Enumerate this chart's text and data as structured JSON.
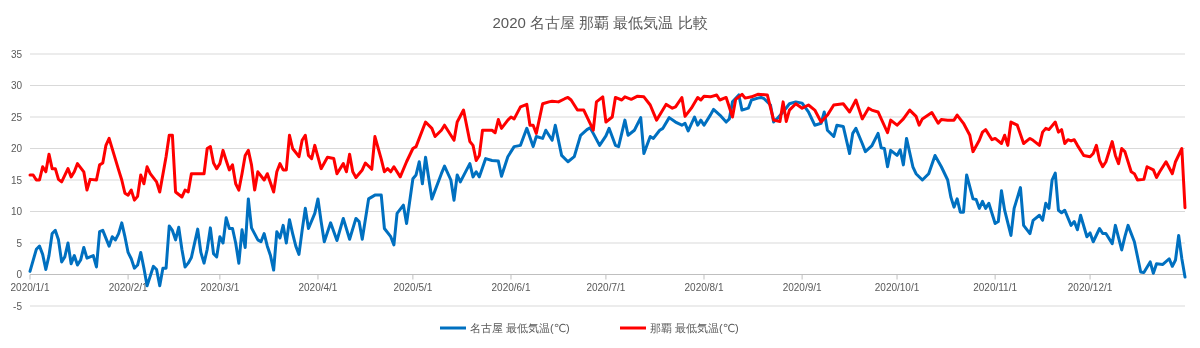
{
  "chart_data": {
    "type": "line",
    "title": "2020 名古屋 那覇 最低気温 比較",
    "xlim": [
      "2020-01-01",
      "2020-12-31"
    ],
    "xticks": [
      {
        "value": "2020-01-01",
        "label": "2020/1/1"
      },
      {
        "value": "2020-02-01",
        "label": "2020/2/1"
      },
      {
        "value": "2020-03-01",
        "label": "2020/3/1"
      },
      {
        "value": "2020-04-01",
        "label": "2020/4/1"
      },
      {
        "value": "2020-05-01",
        "label": "2020/5/1"
      },
      {
        "value": "2020-06-01",
        "label": "2020/6/1"
      },
      {
        "value": "2020-07-01",
        "label": "2020/7/1"
      },
      {
        "value": "2020-08-01",
        "label": "2020/8/1"
      },
      {
        "value": "2020-09-01",
        "label": "2020/9/1"
      },
      {
        "value": "2020-10-01",
        "label": "2020/10/1"
      },
      {
        "value": "2020-11-01",
        "label": "2020/11/1"
      },
      {
        "value": "2020-12-01",
        "label": "2020/12/1"
      }
    ],
    "ylim": [
      -5,
      35
    ],
    "yticks": [
      -5,
      0,
      5,
      10,
      15,
      20,
      25,
      30,
      35
    ],
    "grid": "y",
    "legend": "bottom",
    "marker": "none",
    "line_style": "solid",
    "series": [
      {
        "name": "名古屋 最低気温(℃)",
        "color": "#0070c0",
        "x": [
          "2020-01-01",
          "2020-01-03",
          "2020-01-04",
          "2020-01-05",
          "2020-01-06",
          "2020-01-07",
          "2020-01-08",
          "2020-01-09",
          "2020-01-10",
          "2020-01-11",
          "2020-01-12",
          "2020-01-13",
          "2020-01-14",
          "2020-01-15",
          "2020-01-16",
          "2020-01-17",
          "2020-01-18",
          "2020-01-19",
          "2020-01-21",
          "2020-01-22",
          "2020-01-23",
          "2020-01-24",
          "2020-01-26",
          "2020-01-27",
          "2020-01-28",
          "2020-01-29",
          "2020-01-30",
          "2020-01-31",
          "2020-02-01",
          "2020-02-02",
          "2020-02-03",
          "2020-02-04",
          "2020-02-05",
          "2020-02-06",
          "2020-02-07",
          "2020-02-09",
          "2020-02-10",
          "2020-02-11",
          "2020-02-12",
          "2020-02-13",
          "2020-02-14",
          "2020-02-15",
          "2020-02-16",
          "2020-02-17",
          "2020-02-18",
          "2020-02-19",
          "2020-02-20",
          "2020-02-21",
          "2020-02-23",
          "2020-02-24",
          "2020-02-25",
          "2020-02-26",
          "2020-02-27",
          "2020-02-28",
          "2020-02-29",
          "2020-03-01",
          "2020-03-02",
          "2020-03-03",
          "2020-03-04",
          "2020-03-05",
          "2020-03-06",
          "2020-03-07",
          "2020-03-08",
          "2020-03-09",
          "2020-03-10",
          "2020-03-11",
          "2020-03-13",
          "2020-03-14",
          "2020-03-15",
          "2020-03-16",
          "2020-03-17",
          "2020-03-18",
          "2020-03-19",
          "2020-03-20",
          "2020-03-21",
          "2020-03-22",
          "2020-03-23",
          "2020-03-24",
          "2020-03-25",
          "2020-03-26",
          "2020-03-27",
          "2020-03-28",
          "2020-03-29",
          "2020-03-31",
          "2020-04-01",
          "2020-04-02",
          "2020-04-03",
          "2020-04-05",
          "2020-04-07",
          "2020-04-09",
          "2020-04-11",
          "2020-04-13",
          "2020-04-14",
          "2020-04-15",
          "2020-04-17",
          "2020-04-19",
          "2020-04-21",
          "2020-04-22",
          "2020-04-24",
          "2020-04-25",
          "2020-04-26",
          "2020-04-28",
          "2020-04-29",
          "2020-05-01",
          "2020-05-02",
          "2020-05-03",
          "2020-05-04",
          "2020-05-05",
          "2020-05-07",
          "2020-05-10",
          "2020-05-11",
          "2020-05-13",
          "2020-05-14",
          "2020-05-15",
          "2020-05-16",
          "2020-05-19",
          "2020-05-20",
          "2020-05-21",
          "2020-05-22",
          "2020-05-24",
          "2020-05-26",
          "2020-05-28",
          "2020-05-29",
          "2020-05-31",
          "2020-06-02",
          "2020-06-04",
          "2020-06-06",
          "2020-06-08",
          "2020-06-09",
          "2020-06-11",
          "2020-06-12",
          "2020-06-14",
          "2020-06-15",
          "2020-06-17",
          "2020-06-19",
          "2020-06-21",
          "2020-06-23",
          "2020-06-25",
          "2020-06-26",
          "2020-06-27",
          "2020-06-29",
          "2020-07-01",
          "2020-07-02",
          "2020-07-04",
          "2020-07-05",
          "2020-07-07",
          "2020-07-08",
          "2020-07-10",
          "2020-07-12",
          "2020-07-13",
          "2020-07-15",
          "2020-07-16",
          "2020-07-18",
          "2020-07-19",
          "2020-07-21",
          "2020-07-23",
          "2020-07-25",
          "2020-07-26",
          "2020-07-27",
          "2020-07-29",
          "2020-07-30",
          "2020-07-31",
          "2020-08-01",
          "2020-08-03",
          "2020-08-04",
          "2020-08-06",
          "2020-08-08",
          "2020-08-09",
          "2020-08-10",
          "2020-08-12",
          "2020-08-13",
          "2020-08-15",
          "2020-08-16",
          "2020-08-18",
          "2020-08-19",
          "2020-08-20",
          "2020-08-22",
          "2020-08-23",
          "2020-08-24",
          "2020-08-26",
          "2020-08-28",
          "2020-08-30",
          "2020-09-01",
          "2020-09-03",
          "2020-09-05",
          "2020-09-07",
          "2020-09-08",
          "2020-09-09",
          "2020-09-11",
          "2020-09-12",
          "2020-09-14",
          "2020-09-16",
          "2020-09-17",
          "2020-09-18",
          "2020-09-20",
          "2020-09-21",
          "2020-09-23",
          "2020-09-25",
          "2020-09-26",
          "2020-09-27",
          "2020-09-28",
          "2020-09-29",
          "2020-10-01",
          "2020-10-02",
          "2020-10-03",
          "2020-10-04",
          "2020-10-06",
          "2020-10-07",
          "2020-10-09",
          "2020-10-11",
          "2020-10-13",
          "2020-10-15",
          "2020-10-17",
          "2020-10-18",
          "2020-10-19",
          "2020-10-20",
          "2020-10-21",
          "2020-10-22",
          "2020-10-23",
          "2020-10-25",
          "2020-10-26",
          "2020-10-27",
          "2020-10-28",
          "2020-10-29",
          "2020-10-30",
          "2020-11-01",
          "2020-11-02",
          "2020-11-03",
          "2020-11-04",
          "2020-11-06",
          "2020-11-07",
          "2020-11-09",
          "2020-11-10",
          "2020-11-12",
          "2020-11-13",
          "2020-11-15",
          "2020-11-16",
          "2020-11-17",
          "2020-11-18",
          "2020-11-19",
          "2020-11-20",
          "2020-11-21",
          "2020-11-22",
          "2020-11-23",
          "2020-11-25",
          "2020-11-26",
          "2020-11-27",
          "2020-11-28",
          "2020-11-30",
          "2020-12-01",
          "2020-12-02",
          "2020-12-04",
          "2020-12-05",
          "2020-12-06",
          "2020-12-08",
          "2020-12-09",
          "2020-12-11",
          "2020-12-12",
          "2020-12-13",
          "2020-12-15",
          "2020-12-17",
          "2020-12-18",
          "2020-12-20",
          "2020-12-21",
          "2020-12-22",
          "2020-12-24",
          "2020-12-26",
          "2020-12-27",
          "2020-12-28",
          "2020-12-29",
          "2020-12-30",
          "2020-12-31"
        ],
        "values": [
          0.5,
          4,
          4.5,
          3.2,
          0.8,
          3,
          6.5,
          7,
          5.5,
          2,
          2.8,
          5,
          1.7,
          3,
          1.5,
          2.3,
          4.3,
          2.6,
          3,
          1.2,
          6.8,
          7,
          4.5,
          6,
          5.5,
          6.5,
          8.2,
          6,
          3.5,
          2.5,
          1,
          1.5,
          3.5,
          1,
          -1.8,
          1.3,
          0.8,
          -1.8,
          1,
          1,
          7.7,
          7,
          5.5,
          7.5,
          4,
          1.2,
          1.8,
          2.7,
          7.2,
          3.5,
          1.8,
          4,
          7.4,
          3.3,
          2.8,
          6,
          5,
          9,
          7.3,
          7.3,
          5,
          1.8,
          7.1,
          4.3,
          12,
          7.4,
          5.5,
          5.2,
          6.5,
          4.5,
          3,
          0.7,
          6.8,
          5.8,
          7.8,
          5,
          8.7,
          6.5,
          4.5,
          3.2,
          7,
          10.5,
          7.3,
          9.7,
          12,
          8.4,
          5.2,
          8.2,
          5.4,
          8.9,
          5.6,
          8.9,
          8.4,
          5.6,
          12,
          12.6,
          12.6,
          7.3,
          6,
          4.7,
          9.7,
          11,
          8.1,
          15.2,
          15.8,
          17.9,
          14.4,
          18.6,
          12,
          16,
          17.2,
          15,
          11.8,
          15.8,
          14.7,
          17.6,
          15.5,
          16.3,
          15.5,
          18.4,
          18.1,
          18,
          15.6,
          18.7,
          20.3,
          20.5,
          23.2,
          20.3,
          21.9,
          21.6,
          22.9,
          21.3,
          23.7,
          18.9,
          17.9,
          18.7,
          22.1,
          23,
          23.3,
          22.4,
          20.5,
          22,
          23.2,
          20.5,
          20.3,
          24.5,
          22.1,
          22.9,
          24.9,
          19.2,
          21.9,
          21.6,
          22.9,
          23.2,
          24.9,
          24.2,
          23.7,
          24,
          22.8,
          25,
          23.7,
          24.5,
          23.7,
          25.3,
          26.2,
          25.3,
          24.2,
          24.7,
          27.4,
          28.5,
          26.1,
          26.4,
          27.7,
          28,
          28.1,
          27.9,
          26.9,
          24.2,
          24.7,
          25.8,
          27.1,
          27.4,
          27.2,
          25.8,
          23.7,
          24,
          25.8,
          22.9,
          21.9,
          23.7,
          23.5,
          19.2,
          22.4,
          23.2,
          20.8,
          19.5,
          20.4,
          22.4,
          20.1,
          20,
          17.1,
          19.7,
          18.9,
          19.8,
          17.4,
          21.6,
          17.1,
          16,
          15,
          16,
          18.9,
          17.1,
          15,
          12.3,
          10.7,
          12,
          9.9,
          9.9,
          15.8,
          12,
          11.9,
          10.5,
          11.6,
          10.5,
          11.3,
          8.1,
          8.4,
          13.3,
          10.2,
          6.2,
          10.5,
          13.8,
          7.8,
          6.5,
          8.6,
          9.4,
          8.6,
          11.3,
          10.5,
          15,
          16.1,
          10.2,
          9.8,
          10.2,
          7.8,
          8.4,
          7.1,
          9.4,
          6,
          6.6,
          5.2,
          7.3,
          6.5,
          6.5,
          4.9,
          7.8,
          3.9,
          6,
          7.8,
          5.2,
          0.4,
          0.3,
          2,
          0.2,
          1.7,
          1.6,
          2.5,
          1.3,
          2.3,
          6.2,
          2.5,
          -0.4
        ]
      },
      {
        "name": "那覇 最低気温(℃)",
        "color": "#ff0000",
        "x": [
          "2020-01-01",
          "2020-01-02",
          "2020-01-03",
          "2020-01-04",
          "2020-01-05",
          "2020-01-06",
          "2020-01-07",
          "2020-01-08",
          "2020-01-09",
          "2020-01-10",
          "2020-01-11",
          "2020-01-13",
          "2020-01-14",
          "2020-01-15",
          "2020-01-16",
          "2020-01-18",
          "2020-01-19",
          "2020-01-20",
          "2020-01-22",
          "2020-01-23",
          "2020-01-24",
          "2020-01-25",
          "2020-01-26",
          "2020-01-29",
          "2020-01-30",
          "2020-01-31",
          "2020-02-01",
          "2020-02-02",
          "2020-02-03",
          "2020-02-04",
          "2020-02-05",
          "2020-02-06",
          "2020-02-07",
          "2020-02-08",
          "2020-02-10",
          "2020-02-11",
          "2020-02-13",
          "2020-02-14",
          "2020-02-15",
          "2020-02-16",
          "2020-02-18",
          "2020-02-19",
          "2020-02-20",
          "2020-02-21",
          "2020-02-23",
          "2020-02-25",
          "2020-02-26",
          "2020-02-27",
          "2020-02-28",
          "2020-02-29",
          "2020-03-01",
          "2020-03-02",
          "2020-03-03",
          "2020-03-04",
          "2020-03-05",
          "2020-03-06",
          "2020-03-07",
          "2020-03-08",
          "2020-03-09",
          "2020-03-10",
          "2020-03-11",
          "2020-03-12",
          "2020-03-13",
          "2020-03-15",
          "2020-03-16",
          "2020-03-18",
          "2020-03-19",
          "2020-03-20",
          "2020-03-21",
          "2020-03-22",
          "2020-03-23",
          "2020-03-24",
          "2020-03-26",
          "2020-03-27",
          "2020-03-28",
          "2020-03-29",
          "2020-03-30",
          "2020-03-31",
          "2020-04-02",
          "2020-04-04",
          "2020-04-06",
          "2020-04-07",
          "2020-04-09",
          "2020-04-10",
          "2020-04-11",
          "2020-04-12",
          "2020-04-13",
          "2020-04-15",
          "2020-04-16",
          "2020-04-18",
          "2020-04-19",
          "2020-04-21",
          "2020-04-22",
          "2020-04-23",
          "2020-04-24",
          "2020-04-25",
          "2020-04-27",
          "2020-04-29",
          "2020-05-01",
          "2020-05-02",
          "2020-05-05",
          "2020-05-07",
          "2020-05-08",
          "2020-05-10",
          "2020-05-11",
          "2020-05-13",
          "2020-05-14",
          "2020-05-15",
          "2020-05-17",
          "2020-05-19",
          "2020-05-20",
          "2020-05-21",
          "2020-05-22",
          "2020-05-23",
          "2020-05-26",
          "2020-05-27",
          "2020-05-28",
          "2020-05-29",
          "2020-05-31",
          "2020-06-01",
          "2020-06-02",
          "2020-06-04",
          "2020-06-06",
          "2020-06-07",
          "2020-06-08",
          "2020-06-09",
          "2020-06-11",
          "2020-06-13",
          "2020-06-14",
          "2020-06-16",
          "2020-06-18",
          "2020-06-19",
          "2020-06-20",
          "2020-06-22",
          "2020-06-24",
          "2020-06-26",
          "2020-06-27",
          "2020-06-28",
          "2020-06-30",
          "2020-07-01",
          "2020-07-03",
          "2020-07-04",
          "2020-07-06",
          "2020-07-07",
          "2020-07-09",
          "2020-07-11",
          "2020-07-13",
          "2020-07-15",
          "2020-07-17",
          "2020-07-20",
          "2020-07-22",
          "2020-07-23",
          "2020-07-25",
          "2020-07-26",
          "2020-07-28",
          "2020-07-30",
          "2020-07-31",
          "2020-08-01",
          "2020-08-03",
          "2020-08-05",
          "2020-08-06",
          "2020-08-08",
          "2020-08-10",
          "2020-08-11",
          "2020-08-13",
          "2020-08-14",
          "2020-08-16",
          "2020-08-18",
          "2020-08-21",
          "2020-08-23",
          "2020-08-25",
          "2020-08-26",
          "2020-08-27",
          "2020-08-28",
          "2020-08-30",
          "2020-09-01",
          "2020-09-03",
          "2020-09-05",
          "2020-09-07",
          "2020-09-09",
          "2020-09-11",
          "2020-09-14",
          "2020-09-16",
          "2020-09-18",
          "2020-09-20",
          "2020-09-22",
          "2020-09-23",
          "2020-09-25",
          "2020-09-28",
          "2020-09-29",
          "2020-10-01",
          "2020-10-03",
          "2020-10-05",
          "2020-10-07",
          "2020-10-08",
          "2020-10-09",
          "2020-10-12",
          "2020-10-14",
          "2020-10-15",
          "2020-10-17",
          "2020-10-19",
          "2020-10-20",
          "2020-10-22",
          "2020-10-24",
          "2020-10-25",
          "2020-10-27",
          "2020-10-28",
          "2020-10-29",
          "2020-10-31",
          "2020-11-01",
          "2020-11-03",
          "2020-11-04",
          "2020-11-05",
          "2020-11-06",
          "2020-11-08",
          "2020-11-10",
          "2020-11-12",
          "2020-11-13",
          "2020-11-15",
          "2020-11-16",
          "2020-11-17",
          "2020-11-18",
          "2020-11-20",
          "2020-11-21",
          "2020-11-22",
          "2020-11-23",
          "2020-11-24",
          "2020-11-25",
          "2020-11-26",
          "2020-11-27",
          "2020-11-29",
          "2020-12-01",
          "2020-12-02",
          "2020-12-03",
          "2020-12-04",
          "2020-12-05",
          "2020-12-06",
          "2020-12-08",
          "2020-12-09",
          "2020-12-10",
          "2020-12-11",
          "2020-12-12",
          "2020-12-14",
          "2020-12-15",
          "2020-12-16",
          "2020-12-18",
          "2020-12-19",
          "2020-12-21",
          "2020-12-22",
          "2020-12-23",
          "2020-12-25",
          "2020-12-27",
          "2020-12-28",
          "2020-12-30",
          "2020-12-31"
        ],
        "values": [
          15.8,
          15.8,
          15,
          15,
          17.1,
          16.3,
          19.1,
          16.8,
          16.8,
          15.1,
          14.7,
          16.8,
          15.5,
          16.3,
          17.6,
          16.3,
          13.4,
          15.1,
          15,
          17.4,
          17.7,
          20.5,
          21.6,
          16.6,
          15,
          12.9,
          12.6,
          13.4,
          11.8,
          12.4,
          15.8,
          14.4,
          17.1,
          16,
          14.7,
          13.1,
          18.7,
          22.1,
          22.1,
          13.1,
          12.3,
          13.4,
          13.1,
          16,
          16,
          16,
          20,
          20.3,
          17.7,
          16.8,
          17.6,
          19.7,
          18.1,
          16.6,
          17.4,
          14.4,
          13.4,
          16,
          18.9,
          19.7,
          17.4,
          13.4,
          16.3,
          15,
          16,
          13.1,
          16.3,
          17.6,
          16.6,
          16.6,
          22.1,
          20,
          18.7,
          21.3,
          22.1,
          18.9,
          18.4,
          20.5,
          16.8,
          18.6,
          18.4,
          16,
          17.6,
          16.3,
          19.1,
          16.3,
          15.4,
          16.6,
          17.7,
          16.7,
          21.9,
          18.3,
          16.3,
          16.8,
          16.3,
          17.1,
          15.5,
          17.9,
          20,
          20.3,
          24.2,
          23.2,
          21.9,
          22.9,
          23.7,
          22.1,
          21.3,
          24.2,
          26.1,
          21.1,
          20.5,
          18.1,
          18.9,
          22.9,
          22.9,
          22.5,
          24.6,
          23.2,
          24.5,
          25,
          24.7,
          26.6,
          27,
          23.7,
          23.7,
          22.4,
          27.1,
          27.4,
          27.5,
          27.4,
          27.9,
          28.1,
          27.7,
          26.1,
          26.1,
          24,
          22.9,
          27.4,
          28.2,
          24.2,
          25,
          28.1,
          27.7,
          28.2,
          27.8,
          28.3,
          28.2,
          26.9,
          24.5,
          27,
          26.4,
          26.6,
          28.1,
          25.1,
          26.4,
          28.1,
          27.7,
          28.3,
          28.2,
          28.5,
          27.7,
          28.1,
          25,
          27.8,
          28.6,
          28,
          28.2,
          28.6,
          28.5,
          24.5,
          24.3,
          27.4,
          24.3,
          26.1,
          27.1,
          26.4,
          26.9,
          26.1,
          24.2,
          25.3,
          26.9,
          27.1,
          25.8,
          27.7,
          24.7,
          26.4,
          26.1,
          25.8,
          22.5,
          24.5,
          23.7,
          24.7,
          26.1,
          25.1,
          23.7,
          24.7,
          25.7,
          24,
          24.6,
          24.5,
          24.5,
          25.3,
          24,
          22.1,
          19.5,
          21.3,
          22.6,
          23,
          21.4,
          21.6,
          20.8,
          22.1,
          20.5,
          24.2,
          23.7,
          20.8,
          21.6,
          21.3,
          20.5,
          22.6,
          23.2,
          23,
          24.2,
          22.6,
          23,
          20.8,
          21.4,
          21.2,
          21.4,
          20.5,
          18.9,
          18.7,
          19.2,
          20.5,
          18.1,
          17.1,
          17.9,
          21.1,
          18.9,
          17.6,
          20,
          19.5,
          16.3,
          16,
          15,
          15.1,
          17.1,
          16.6,
          15.4,
          16.3,
          17.9,
          16,
          17.9,
          20,
          10.6
        ]
      }
    ]
  }
}
